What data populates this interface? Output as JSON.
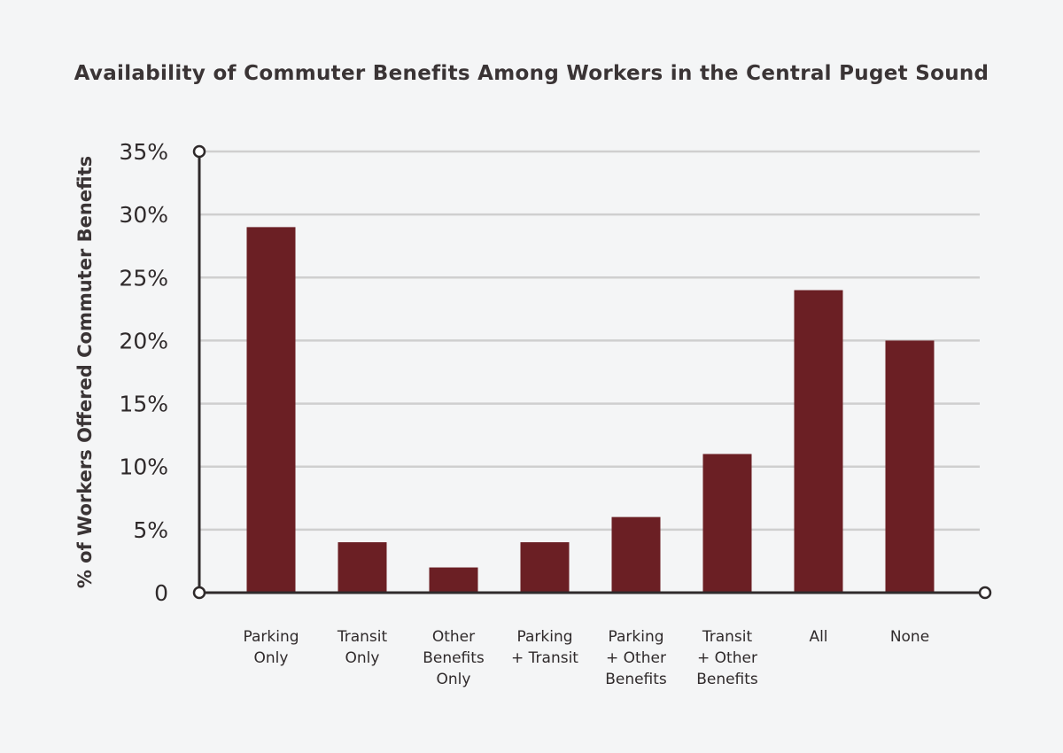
{
  "chart_data": {
    "type": "bar",
    "title": "Availability of Commuter Benefits Among Workers in the Central Puget Sound",
    "xlabel": "",
    "ylabel": "% of Workers Offered Commuter Benefits",
    "categories": [
      "Parking\nOnly",
      "Transit\nOnly",
      "Other\nBenefits\nOnly",
      "Parking\n+ Transit",
      "Parking\n+ Other\nBenefits",
      "Transit\n+ Other\nBenefits",
      "All",
      "None"
    ],
    "values": [
      29,
      4,
      2,
      4,
      6,
      11,
      24,
      20
    ],
    "unit": "%",
    "ylim": [
      0,
      35
    ],
    "yticks": [
      0,
      5,
      10,
      15,
      20,
      25,
      30,
      35
    ],
    "ytick_labels": [
      "0",
      "5%",
      "10%",
      "15%",
      "20%",
      "25%",
      "30%",
      "35%"
    ],
    "grid": "horizontal",
    "legend": "none",
    "colors": {
      "bar": "#6b1f24",
      "grid": "#cfcfcf",
      "axis": "#2f2a2b",
      "background": "#f4f5f6"
    }
  }
}
